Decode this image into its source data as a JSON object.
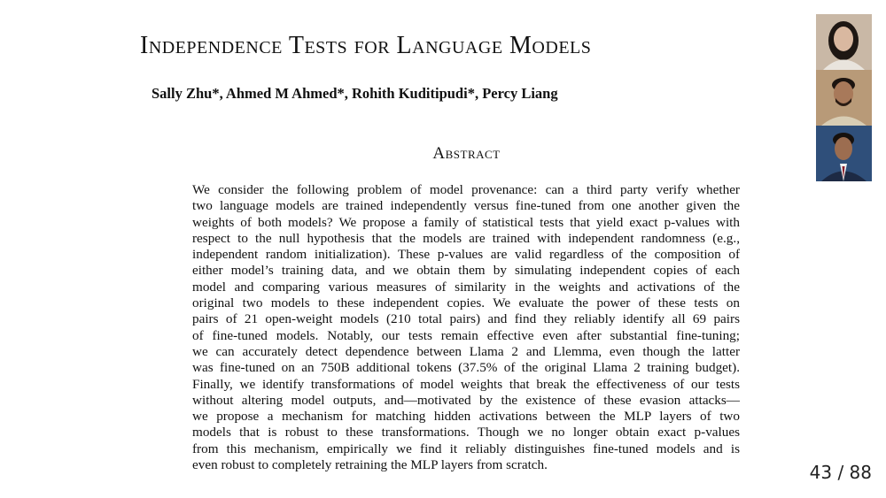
{
  "paper": {
    "title": "Independence Tests for Language Models",
    "authors": "Sally Zhu*, Ahmed M Ahmed*, Rohith Kuditipudi*, Percy Liang",
    "abstract_heading": "Abstract",
    "abstract_lines": [
      "We consider the following problem of model provenance: can a third party verify whether",
      "two language models are trained independently versus fine-tuned from one another given the",
      "weights of both models? We propose a family of statistical tests that yield exact p-values with",
      "respect to the null hypothesis that the models are trained with independent randomness (e.g.,",
      "independent random initialization). These p-values are valid regardless of the composition of",
      "either model’s training data, and we obtain them by simulating independent copies of each",
      "model and comparing various measures of similarity in the weights and activations of the",
      "original two models to these independent copies. We evaluate the power of these tests on",
      "pairs of 21 open-weight models (210 total pairs) and find they reliably identify all 69 pairs",
      "of fine-tuned models. Notably, our tests remain effective even after substantial fine-tuning;",
      "we can accurately detect dependence between Llama 2 and Llemma, even though the latter",
      "was fine-tuned on an 750B additional tokens (37.5% of the original Llama 2 training budget).",
      "Finally, we identify transformations of model weights that break the effectiveness of our tests",
      "without altering model outputs, and—motivated by the existence of these evasion attacks—",
      "we propose a mechanism for matching hidden activations between the MLP layers of two",
      "models that is robust to these transformations. Though we no longer obtain exact p-values",
      "from this mechanism, empirically we find it reliably distinguishes fine-tuned models and is",
      "even robust to completely retraining the MLP layers from scratch."
    ]
  },
  "author_photos": [
    {
      "icon": "author-photo-1",
      "bg": "#c9b8a6",
      "skin": "#d9b8a0",
      "hair": "#1e1713",
      "shirt": "#e9e4dd"
    },
    {
      "icon": "author-photo-2",
      "bg": "#b89a78",
      "skin": "#a8795a",
      "hair": "#1c1410",
      "shirt": "#d8cdb4"
    },
    {
      "icon": "author-photo-3",
      "bg": "#2f4f7a",
      "skin": "#9c6d50",
      "hair": "#16110e",
      "shirt": "#1d2a44"
    }
  ],
  "slide_counter": {
    "current": "43",
    "separator": " / ",
    "total": "88"
  }
}
